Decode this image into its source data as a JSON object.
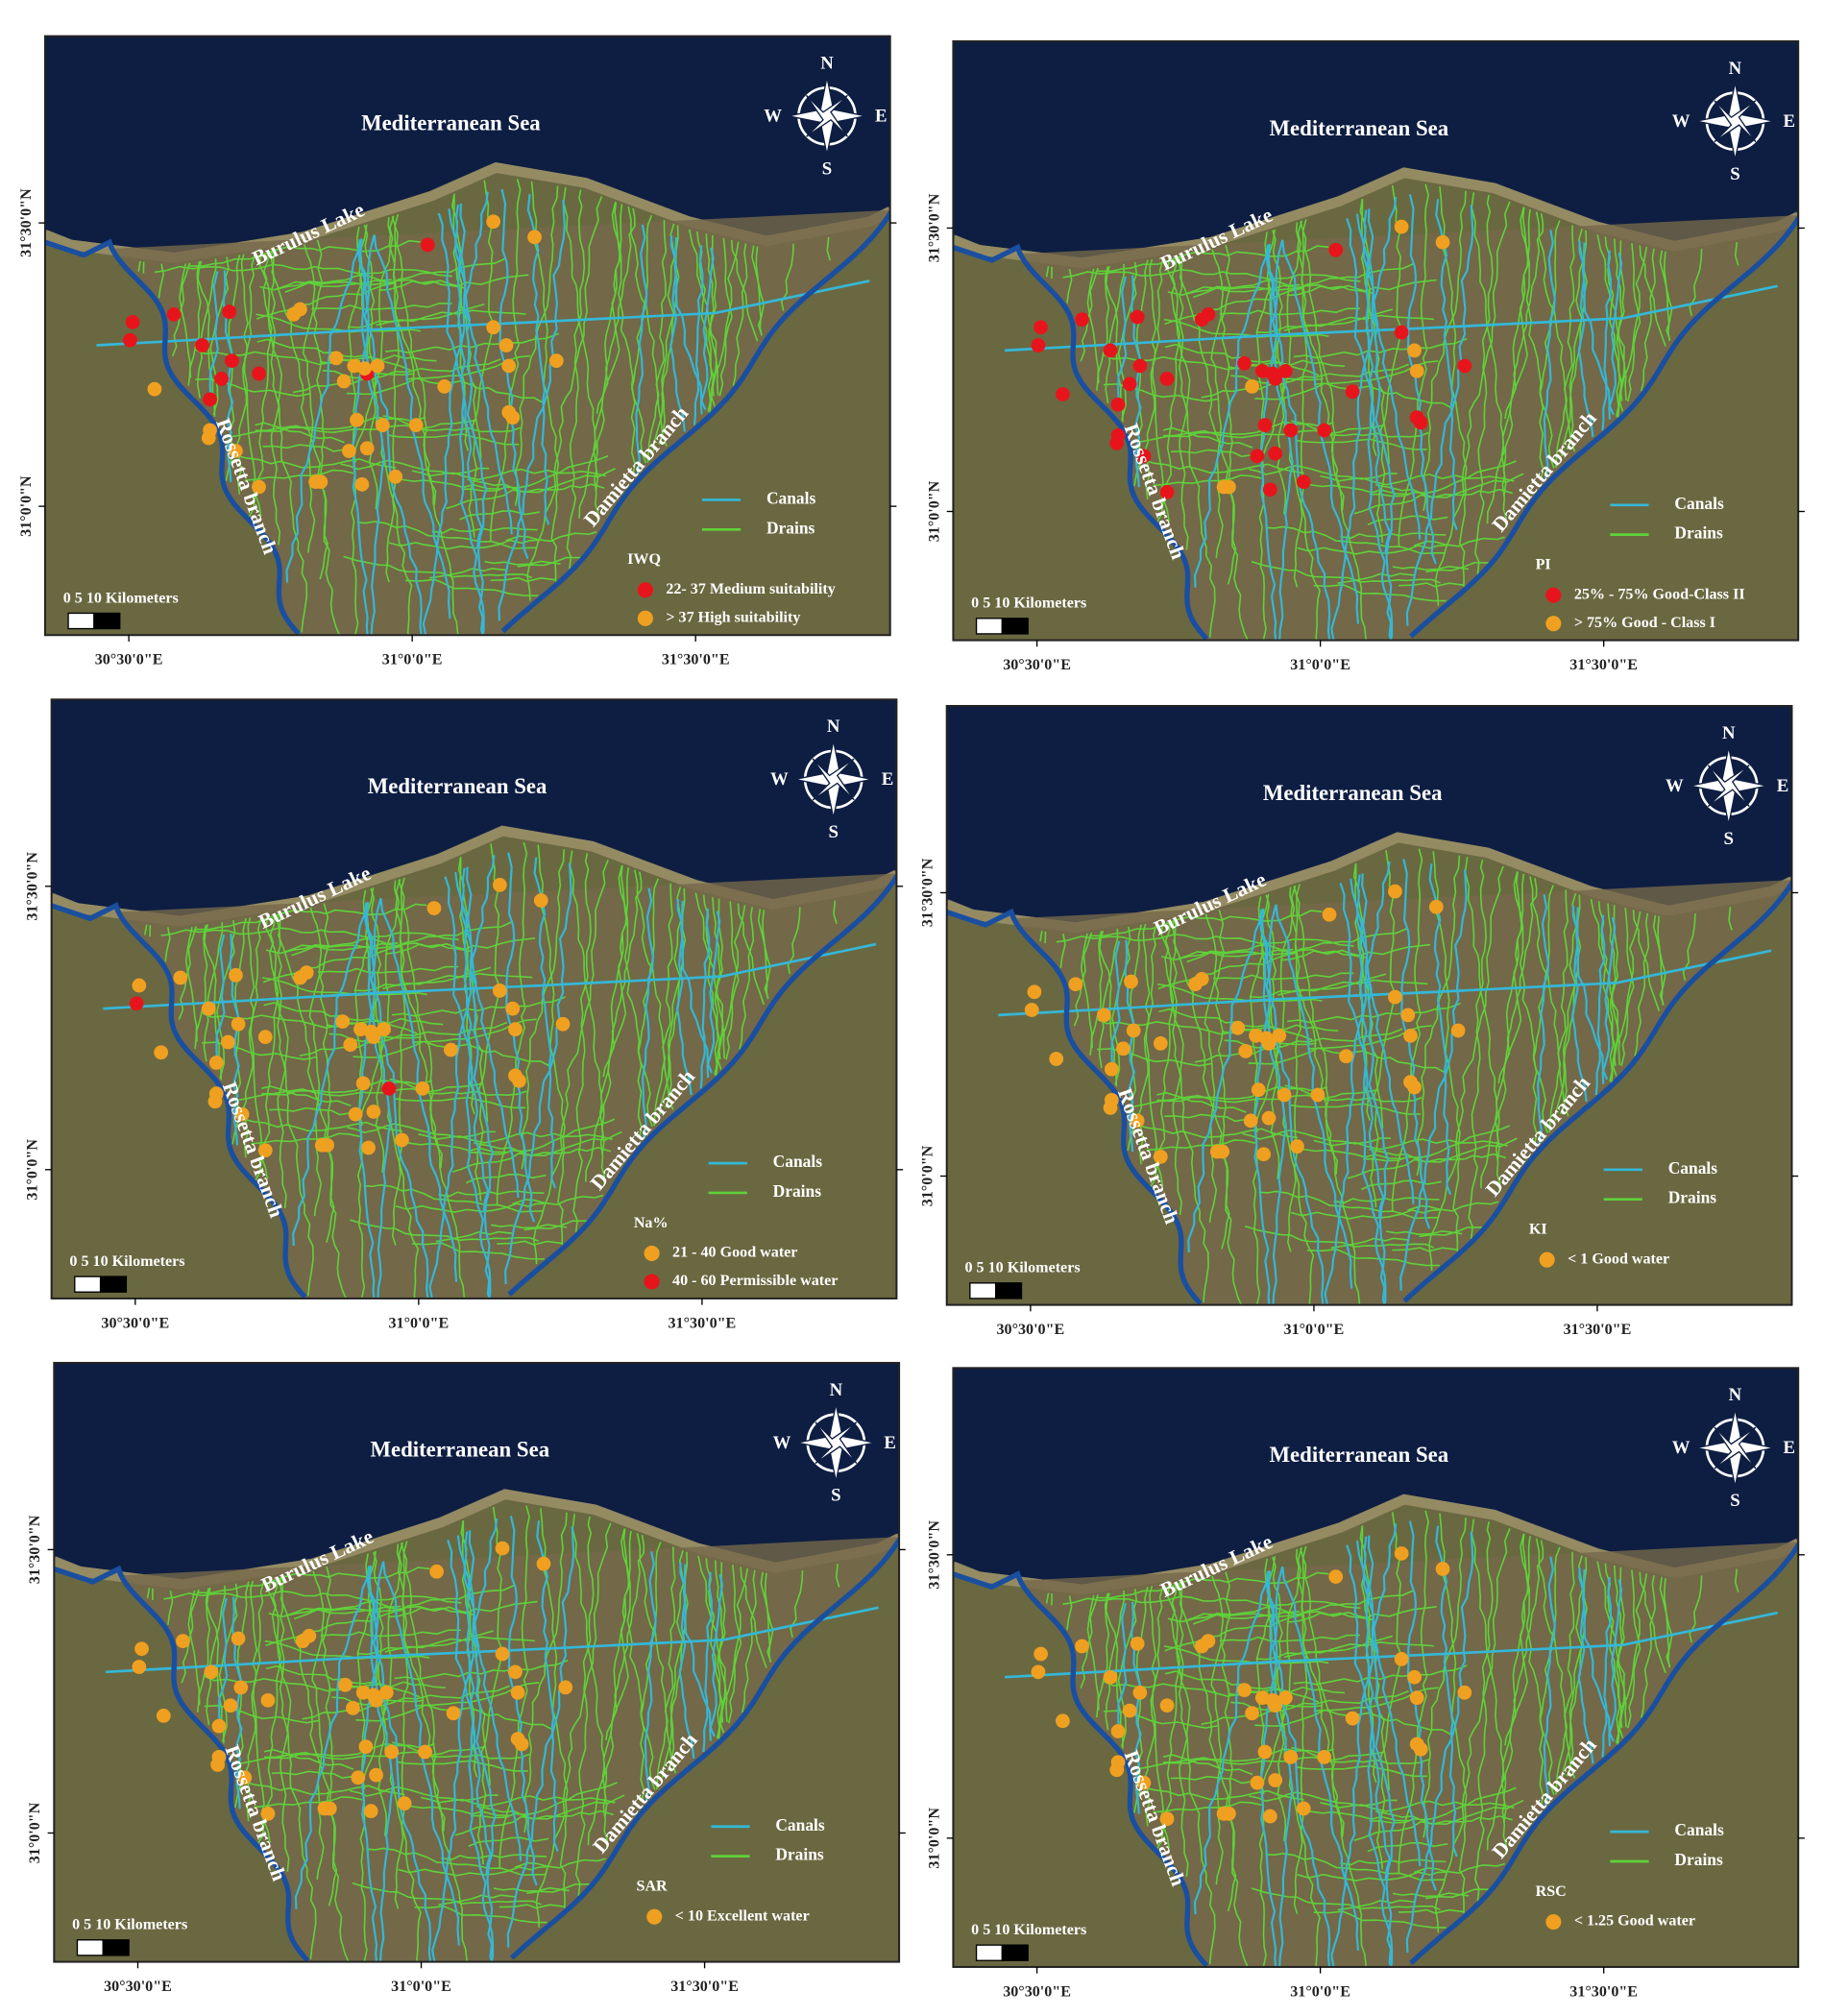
{
  "map": {
    "sea": "Mediterranean Sea",
    "lake": "Burulus Lake",
    "rosetta": "Rossetta branch",
    "damietta": "Damietta branch",
    "canals": "Canals",
    "drains": "Drains",
    "scale": "0   5   10 Kilometers",
    "compass": {
      "n": "N",
      "s": "S",
      "e": "E",
      "w": "W"
    },
    "lat_labels": [
      "31°30'0\"N",
      "31°0'0\"N"
    ],
    "lon_labels": [
      "30°30'0\"E",
      "31°0'0\"E",
      "31°30'0\"E"
    ]
  },
  "panels": [
    {
      "index": "IWQ",
      "classes": [
        {
          "label": "22- 37 Medium suitability",
          "color": "#e8141c"
        },
        {
          "label": ">  37  High suitability",
          "color": "#f0a020"
        }
      ]
    },
    {
      "index": "PI",
      "classes": [
        {
          "label": "25% - 75% Good-Class II",
          "color": "#e8141c"
        },
        {
          "label": "> 75% Good - Class I",
          "color": "#f0a020"
        }
      ]
    },
    {
      "index": "Na%",
      "classes": [
        {
          "label": "21 - 40 Good water",
          "color": "#f0a020"
        },
        {
          "label": "40 - 60 Permissible water",
          "color": "#e8141c"
        }
      ]
    },
    {
      "index": "KI",
      "classes": [
        {
          "label": "< 1 Good water",
          "color": "#f0a020"
        }
      ]
    },
    {
      "index": "SAR",
      "classes": [
        {
          "label": "< 10 Excellent water",
          "color": "#f0a020"
        }
      ]
    },
    {
      "index": "RSC",
      "classes": [
        {
          "label": "< 1.25 Good water",
          "color": "#f0a020"
        }
      ]
    }
  ]
}
